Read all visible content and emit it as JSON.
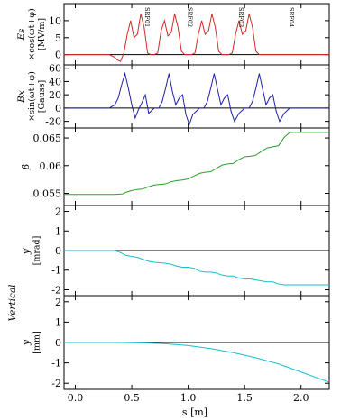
{
  "figure": {
    "xlabel": "s [m]",
    "side_label": "Vertical",
    "xlim": [
      -0.1,
      2.25
    ],
    "xticks": [
      0.0,
      0.5,
      1.0,
      1.5,
      2.0
    ],
    "xtick_labels": [
      "0.0",
      "0.5",
      "1.0",
      "1.5",
      "2.0"
    ]
  },
  "chart_data": [
    {
      "type": "line",
      "ylabel_lines": [
        "Es",
        "×cos(ωt+φ)",
        "[MV/m]"
      ],
      "ylim": [
        -3,
        15
      ],
      "yticks": [
        0,
        5,
        10
      ],
      "series": [
        {
          "color": "#d62728",
          "x": [
            -0.1,
            0.3,
            0.35,
            0.37,
            0.4,
            0.43,
            0.46,
            0.49,
            0.52,
            0.55,
            0.58,
            0.61,
            0.64,
            0.67,
            0.7,
            0.73,
            0.76,
            0.79,
            0.82,
            0.85,
            0.88,
            0.91,
            0.94,
            0.97,
            1.0,
            1.03,
            1.06,
            1.09,
            1.12,
            1.15,
            1.18,
            1.21,
            1.24,
            1.27,
            1.3,
            1.33,
            1.36,
            1.39,
            1.42,
            1.45,
            1.48,
            1.51,
            1.54,
            1.57,
            1.6,
            1.63,
            1.66,
            1.69,
            1.72,
            1.75,
            1.78,
            1.81,
            1.84,
            1.87,
            1.9,
            2.25
          ],
          "y": [
            0,
            0,
            -0.8,
            -1.5,
            -2.0,
            0.5,
            6.0,
            10.0,
            5.0,
            6.0,
            12.0,
            8.0,
            0.5,
            0,
            0,
            0.5,
            7.0,
            10.0,
            5.5,
            6.5,
            12.0,
            8.0,
            1.0,
            0,
            0,
            0,
            0.5,
            6.0,
            10.0,
            6.0,
            7.0,
            12.0,
            8.0,
            1.0,
            0,
            0,
            0,
            0.5,
            6.0,
            10.0,
            6.0,
            7.0,
            12.0,
            8.0,
            1.0,
            0,
            0,
            0,
            0,
            0,
            0,
            0,
            0,
            0,
            0,
            0
          ]
        }
      ],
      "annotations": [
        {
          "text": "SRF01",
          "x": 0.62
        },
        {
          "text": "SRF02",
          "x": 1.0
        },
        {
          "text": "SRF03",
          "x": 1.45
        },
        {
          "text": "SRF04",
          "x": 1.9
        }
      ]
    },
    {
      "type": "line",
      "ylabel_lines": [
        "Bx",
        "×sin(ωt+φ)",
        "[Gauss]"
      ],
      "ylim": [
        -30,
        65
      ],
      "yticks": [
        -20,
        0,
        20,
        40,
        60
      ],
      "series": [
        {
          "color": "#1f1fa8",
          "x": [
            -0.1,
            0.3,
            0.35,
            0.38,
            0.41,
            0.44,
            0.47,
            0.5,
            0.53,
            0.56,
            0.59,
            0.62,
            0.65,
            0.7,
            0.74,
            0.77,
            0.8,
            0.83,
            0.86,
            0.89,
            0.92,
            0.95,
            0.98,
            1.01,
            1.04,
            1.1,
            1.14,
            1.17,
            1.2,
            1.23,
            1.26,
            1.29,
            1.32,
            1.35,
            1.38,
            1.41,
            1.45,
            1.5,
            1.54,
            1.57,
            1.6,
            1.63,
            1.66,
            1.69,
            1.72,
            1.75,
            1.78,
            1.81,
            1.85,
            1.9,
            2.25
          ],
          "y": [
            0,
            0,
            5,
            15,
            35,
            52,
            30,
            5,
            -15,
            -2,
            8,
            20,
            -8,
            0,
            0,
            10,
            30,
            52,
            25,
            5,
            15,
            20,
            -10,
            -25,
            -10,
            0,
            0,
            10,
            30,
            52,
            28,
            5,
            15,
            20,
            -5,
            -20,
            -8,
            0,
            0,
            10,
            30,
            52,
            28,
            5,
            15,
            20,
            -5,
            -20,
            -8,
            0,
            0
          ]
        }
      ]
    },
    {
      "type": "line",
      "ylabel_lines": [
        "β"
      ],
      "ylim": [
        0.0528,
        0.0668
      ],
      "yticks": [
        0.055,
        0.06,
        0.065
      ],
      "series": [
        {
          "color": "#2ca02c",
          "x": [
            -0.1,
            0.35,
            0.42,
            0.45,
            0.5,
            0.55,
            0.6,
            0.65,
            0.7,
            0.75,
            0.8,
            0.85,
            0.9,
            0.95,
            1.0,
            1.05,
            1.1,
            1.15,
            1.2,
            1.25,
            1.3,
            1.35,
            1.4,
            1.45,
            1.5,
            1.55,
            1.6,
            1.65,
            1.7,
            1.75,
            1.8,
            1.85,
            1.9,
            2.25
          ],
          "y": [
            0.0548,
            0.0548,
            0.0549,
            0.0552,
            0.0555,
            0.0557,
            0.0558,
            0.0562,
            0.0565,
            0.0566,
            0.0567,
            0.0571,
            0.0573,
            0.0574,
            0.0576,
            0.0581,
            0.0586,
            0.0588,
            0.0589,
            0.0595,
            0.0601,
            0.0603,
            0.0604,
            0.0611,
            0.0616,
            0.0617,
            0.0619,
            0.0626,
            0.0632,
            0.0634,
            0.0636,
            0.0651,
            0.066,
            0.066
          ]
        }
      ]
    },
    {
      "type": "line",
      "ylabel_lines": [
        "y′",
        "[mrad]"
      ],
      "ylim": [
        -2.3,
        2.3
      ],
      "yticks": [
        -2,
        -1,
        0,
        1,
        2
      ],
      "series": [
        {
          "color": "#17becf",
          "x": [
            -0.1,
            0.35,
            0.4,
            0.45,
            0.5,
            0.55,
            0.6,
            0.65,
            0.7,
            0.75,
            0.8,
            0.85,
            0.9,
            0.95,
            1.0,
            1.05,
            1.1,
            1.15,
            1.2,
            1.25,
            1.3,
            1.35,
            1.4,
            1.45,
            1.5,
            1.55,
            1.6,
            1.65,
            1.7,
            1.75,
            1.8,
            1.85,
            1.9,
            2.25
          ],
          "y": [
            0.0,
            0.0,
            -0.1,
            -0.25,
            -0.3,
            -0.35,
            -0.45,
            -0.55,
            -0.6,
            -0.62,
            -0.65,
            -0.7,
            -0.8,
            -0.85,
            -0.85,
            -0.9,
            -1.05,
            -1.1,
            -1.1,
            -1.15,
            -1.25,
            -1.3,
            -1.3,
            -1.4,
            -1.45,
            -1.45,
            -1.5,
            -1.55,
            -1.6,
            -1.6,
            -1.7,
            -1.75,
            -1.75,
            -1.75
          ]
        }
      ]
    },
    {
      "type": "line",
      "ylabel_lines": [
        "y",
        "[mm]"
      ],
      "ylim": [
        -2.3,
        2.3
      ],
      "yticks": [
        -2,
        -1,
        0,
        1,
        2
      ],
      "series": [
        {
          "color": "#17becf",
          "x": [
            -0.1,
            0.4,
            0.6,
            0.8,
            1.0,
            1.2,
            1.4,
            1.6,
            1.8,
            2.0,
            2.25
          ],
          "y": [
            0.0,
            0.0,
            -0.02,
            -0.06,
            -0.15,
            -0.3,
            -0.5,
            -0.75,
            -1.05,
            -1.45,
            -1.95
          ]
        }
      ]
    }
  ]
}
